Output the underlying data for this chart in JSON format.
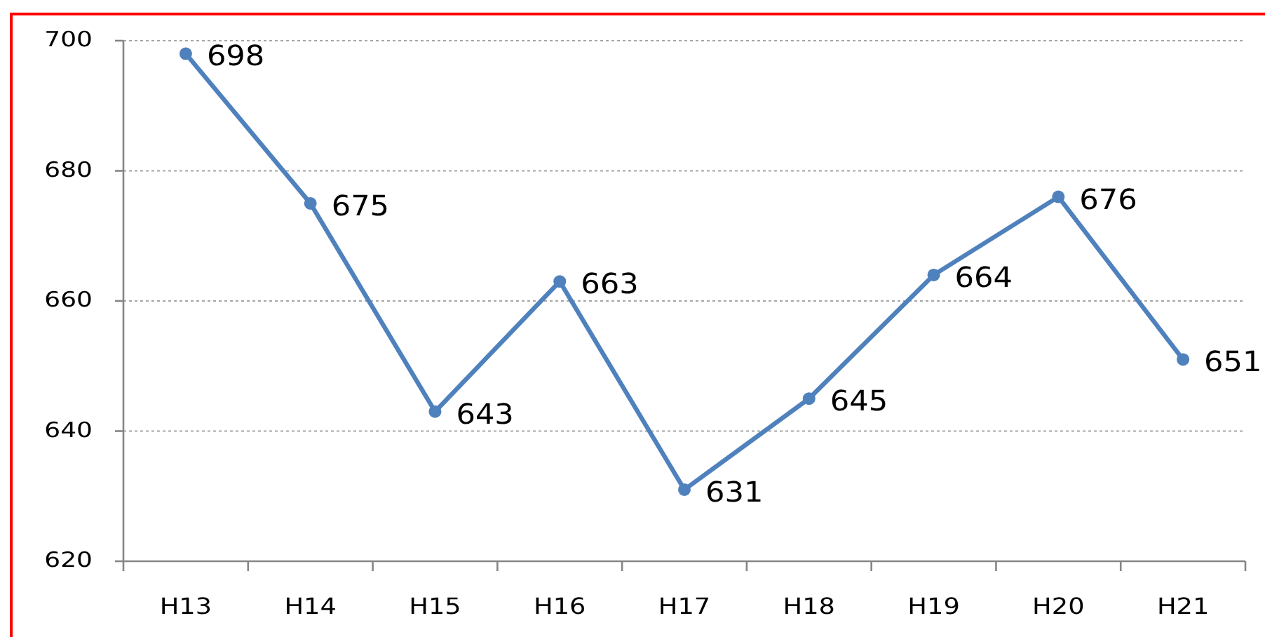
{
  "chart_data": {
    "type": "line",
    "categories": [
      "H13",
      "H14",
      "H15",
      "H16",
      "H17",
      "H18",
      "H19",
      "H20",
      "H21"
    ],
    "series": [
      {
        "color": "#4f81bd",
        "values": [
          698,
          675,
          643,
          663,
          631,
          645,
          664,
          676,
          651
        ]
      }
    ],
    "ylim": [
      620,
      700
    ],
    "yticks": [
      620,
      640,
      660,
      680,
      700
    ],
    "grid": "y",
    "data_labels": true,
    "marker": "circle",
    "line_style": "solid"
  }
}
